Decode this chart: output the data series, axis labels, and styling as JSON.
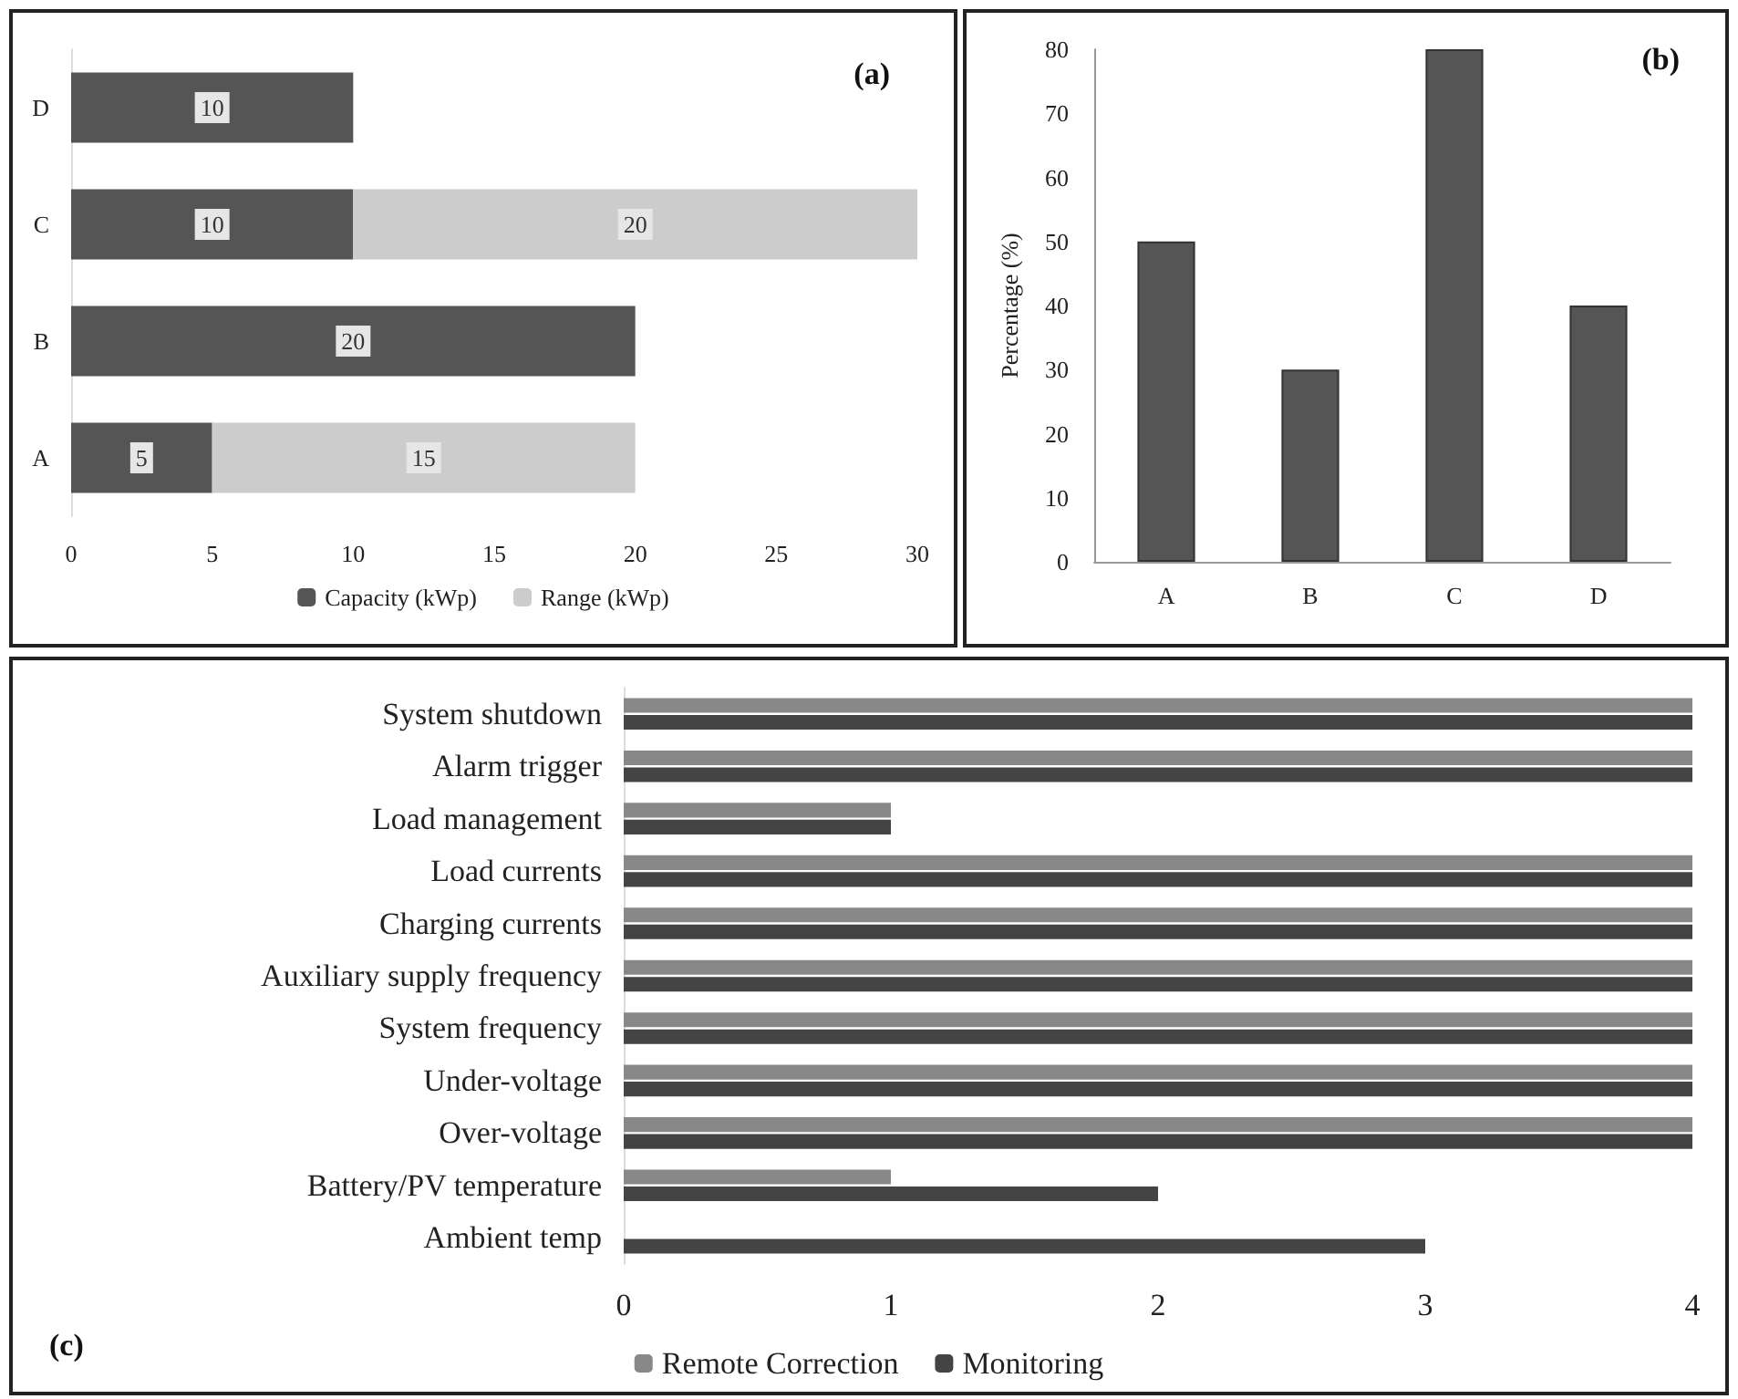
{
  "chart_data": [
    {
      "type": "bar",
      "title": "(a)",
      "orientation": "horizontal",
      "stacked": true,
      "categories": [
        "D",
        "C",
        "B",
        "A"
      ],
      "series": [
        {
          "name": "Capacity (kWp)",
          "color": "#555555",
          "values": [
            10,
            10,
            20,
            5
          ]
        },
        {
          "name": "Range (kWp)",
          "color": "#cccccc",
          "values": [
            null,
            20,
            null,
            15
          ]
        }
      ],
      "xlim": [
        0,
        30
      ],
      "xticks": [
        0,
        5,
        10,
        15,
        20,
        25,
        30
      ],
      "data_labels": true,
      "legend": "bottom",
      "grid": false
    },
    {
      "type": "bar",
      "title": "(b)",
      "categories": [
        "A",
        "B",
        "C",
        "D"
      ],
      "values": [
        50,
        30,
        80,
        40
      ],
      "color": "#555555",
      "ylabel": "Percentage (%)",
      "ylim": [
        0,
        80
      ],
      "yticks": [
        0,
        10,
        20,
        30,
        40,
        50,
        60,
        70,
        80
      ],
      "grid": false,
      "legend": false
    },
    {
      "type": "bar",
      "title": "(c)",
      "orientation": "horizontal",
      "categories": [
        "System shutdown",
        "Alarm trigger",
        "Load management",
        "Load currents",
        "Charging currents",
        "Auxiliary supply frequency",
        "System frequency",
        "Under-voltage",
        "Over-voltage",
        "Battery/PV temperature",
        "Ambient temp"
      ],
      "series": [
        {
          "name": "Remote Correction",
          "color": "#888888",
          "values": [
            4,
            4,
            1,
            4,
            4,
            4,
            4,
            4,
            4,
            1,
            0
          ]
        },
        {
          "name": "Monitoring",
          "color": "#444444",
          "values": [
            4,
            4,
            1,
            4,
            4,
            4,
            4,
            4,
            4,
            2,
            3
          ]
        }
      ],
      "xlim": [
        0,
        4
      ],
      "xticks": [
        0,
        1,
        2,
        3,
        4
      ],
      "legend": "bottom",
      "grid": false
    }
  ]
}
